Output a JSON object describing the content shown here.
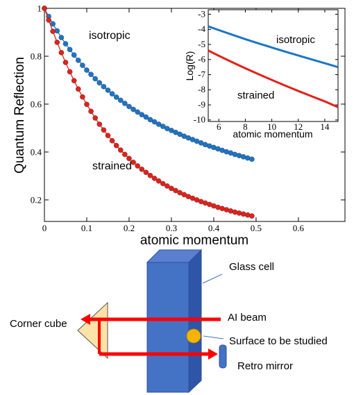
{
  "chart_data": [
    {
      "type": "line",
      "markers": true,
      "x_label": "atomic momentum",
      "y_label": "Quantum Reflection",
      "annotations": [
        "isotropic",
        "strained"
      ],
      "x": [
        0,
        0.01,
        0.02,
        0.03,
        0.04,
        0.05,
        0.06,
        0.07,
        0.08,
        0.09,
        0.1,
        0.11,
        0.12,
        0.13,
        0.14,
        0.15,
        0.16,
        0.17,
        0.18,
        0.19,
        0.2,
        0.21,
        0.22,
        0.23,
        0.24,
        0.25,
        0.26,
        0.27,
        0.28,
        0.29,
        0.3,
        0.31,
        0.32,
        0.33,
        0.34,
        0.35,
        0.36,
        0.37,
        0.38,
        0.39,
        0.4,
        0.41,
        0.42,
        0.43,
        0.44,
        0.45,
        0.46,
        0.47,
        0.48,
        0.49
      ],
      "series": [
        {
          "name": "isotropic",
          "color": "#1b75c9",
          "values": [
            1,
            0.966,
            0.935,
            0.906,
            0.878,
            0.852,
            0.828,
            0.805,
            0.783,
            0.762,
            0.742,
            0.724,
            0.706,
            0.689,
            0.673,
            0.658,
            0.643,
            0.629,
            0.616,
            0.603,
            0.59,
            0.578,
            0.567,
            0.556,
            0.546,
            0.535,
            0.526,
            0.516,
            0.507,
            0.498,
            0.49,
            0.482,
            0.474,
            0.466,
            0.459,
            0.452,
            0.445,
            0.438,
            0.431,
            0.425,
            0.419,
            0.413,
            0.407,
            0.401,
            0.396,
            0.39,
            0.385,
            0.38,
            0.375,
            0.37
          ]
        },
        {
          "name": "strained",
          "color": "#e32119",
          "values": [
            1,
            0.951,
            0.904,
            0.858,
            0.815,
            0.774,
            0.735,
            0.698,
            0.663,
            0.63,
            0.599,
            0.57,
            0.542,
            0.516,
            0.492,
            0.469,
            0.447,
            0.427,
            0.408,
            0.39,
            0.373,
            0.357,
            0.342,
            0.328,
            0.315,
            0.302,
            0.29,
            0.279,
            0.268,
            0.258,
            0.248,
            0.239,
            0.23,
            0.222,
            0.214,
            0.207,
            0.2,
            0.193,
            0.187,
            0.181,
            0.175,
            0.169,
            0.164,
            0.159,
            0.154,
            0.149,
            0.145,
            0.141,
            0.137,
            0.133
          ]
        }
      ],
      "xlim": [
        0,
        0.71
      ],
      "xticks": [
        0,
        0.1,
        0.2,
        0.3,
        0.4,
        0.5,
        0.6
      ],
      "ylim": [
        0.11,
        1.0
      ],
      "yticks": [
        0.2,
        0.4,
        0.6,
        0.8,
        1
      ]
    },
    {
      "type": "line",
      "markers": false,
      "x_label": "atomic momentum",
      "y_label": "Log(R)",
      "annotations": [
        "isotropic",
        "strained"
      ],
      "x": [
        5.2,
        6,
        7,
        8,
        9,
        10,
        11,
        12,
        13,
        14,
        15
      ],
      "series": [
        {
          "name": "isotropic",
          "color": "#1b75c9",
          "values": [
            -3.8,
            -4.05,
            -4.35,
            -4.65,
            -4.93,
            -5.2,
            -5.47,
            -5.73,
            -5.99,
            -6.24,
            -6.5
          ]
        },
        {
          "name": "strained",
          "color": "#e32119",
          "values": [
            -5.4,
            -5.75,
            -6.17,
            -6.58,
            -6.97,
            -7.35,
            -7.72,
            -8.08,
            -8.43,
            -8.77,
            -9.15
          ]
        }
      ],
      "xlim": [
        5.2,
        15
      ],
      "xticks": [
        6,
        8,
        10,
        12,
        14
      ],
      "ylim": [
        -10.1,
        -2.7
      ],
      "yticks": [
        -3,
        -4,
        -5,
        -6,
        -7,
        -8,
        -9,
        -10
      ]
    }
  ],
  "diagram": {
    "labels": [
      "Glass cell",
      "Corner cube",
      "AI beam",
      "Surface to be studied",
      "Retro mirror"
    ]
  }
}
